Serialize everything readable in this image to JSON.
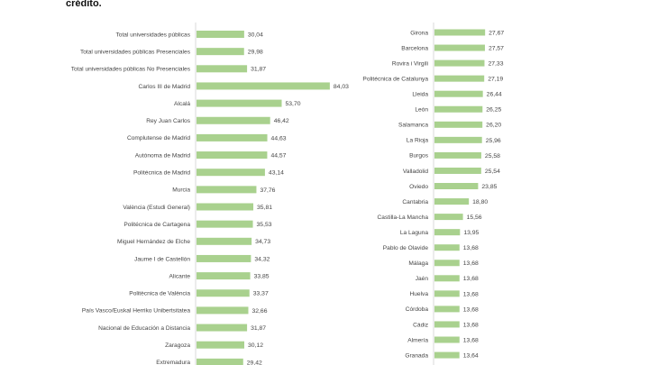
{
  "heading": "crédito.",
  "chart_data": [
    {
      "type": "bar",
      "orientation": "horizontal",
      "color": "#a9d18e",
      "categories": [
        "Total universidades públicas",
        "Total universidades públicas Presenciales",
        "Total universidades públicas No Presenciales",
        "Carlos III de Madrid",
        "Alcalá",
        "Rey Juan Carlos",
        "Complutense de Madrid",
        "Autónoma de Madrid",
        "Politécnica de Madrid",
        "Murcia",
        "València (Estudi General)",
        "Politécnica de Cartagena",
        "Miguel Hernández de Elche",
        "Jaume I de Castellón",
        "Alicante",
        "Politècnica de València",
        "País Vasco/Euskal Herriko Unibertsitatea",
        "Nacional de Educación a Distancia",
        "Zaragoza",
        "Extremadura"
      ],
      "values": [
        30.04,
        29.98,
        31.87,
        84.03,
        53.7,
        46.42,
        44.63,
        44.57,
        43.14,
        37.76,
        35.81,
        35.53,
        34.73,
        34.32,
        33.85,
        33.37,
        32.66,
        31.87,
        30.12,
        29.42
      ],
      "labels": [
        "30,04",
        "29,98",
        "31,87",
        "84,03",
        "53,70",
        "46,42",
        "44,63",
        "44,57",
        "43,14",
        "37,76",
        "35,81",
        "35,53",
        "34,73",
        "34,32",
        "33,85",
        "33,37",
        "32,66",
        "31,87",
        "30,12",
        "29,42"
      ]
    },
    {
      "type": "bar",
      "orientation": "horizontal",
      "color": "#a9d18e",
      "categories": [
        "Girona",
        "Barcelona",
        "Rovira i Virgili",
        "Politécnica de Catalunya",
        "Lleida",
        "León",
        "Salamanca",
        "La Rioja",
        "Burgos",
        "Valladolid",
        "Oviedo",
        "Cantabria",
        "Castilla-La Mancha",
        "La Laguna",
        "Pablo de Olavide",
        "Málaga",
        "Jaén",
        "Huelva",
        "Córdoba",
        "Cádiz",
        "Almería",
        "Granada"
      ],
      "values": [
        27.67,
        27.57,
        27.33,
        27.19,
        26.44,
        26.25,
        26.2,
        25.96,
        25.58,
        25.54,
        23.85,
        18.8,
        15.56,
        13.95,
        13.68,
        13.68,
        13.68,
        13.68,
        13.68,
        13.68,
        13.68,
        13.64
      ],
      "labels": [
        "27,67",
        "27,57",
        "27,33",
        "27,19",
        "26,44",
        "26,25",
        "26,20",
        "25,96",
        "25,58",
        "25,54",
        "23,85",
        "18,80",
        "15,56",
        "13,95",
        "13,68",
        "13,68",
        "13,68",
        "13,68",
        "13,68",
        "13,68",
        "13,68",
        "13,64"
      ]
    }
  ]
}
